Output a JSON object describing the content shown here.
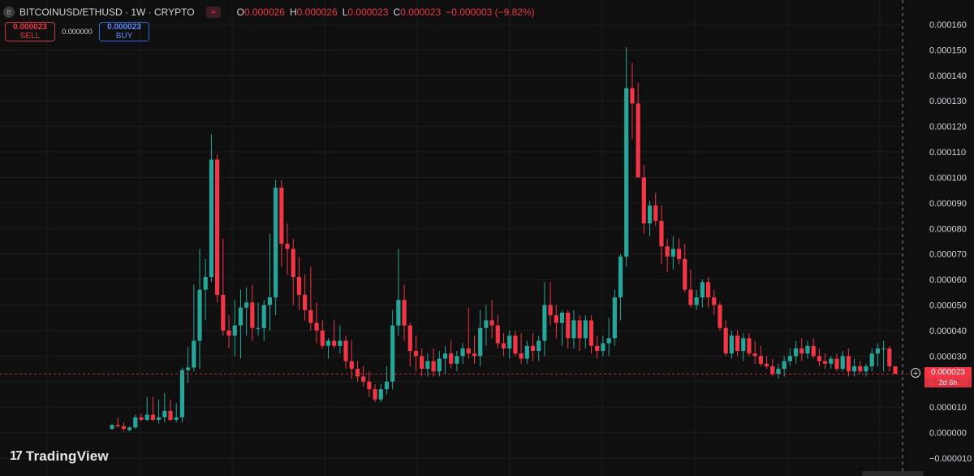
{
  "header": {
    "symbol_logo": "B",
    "symbol_title": "BITCOINUSD/ETHUSD · 1W · CRYPTO",
    "indicator_icon": "wave-icon",
    "ohlc": {
      "o_label": "O",
      "o_value": "0.000026",
      "h_label": "H",
      "h_value": "0.000026",
      "l_label": "L",
      "l_value": "0.000023",
      "c_label": "C",
      "c_value": "0.000023",
      "change": "−0.000003 (−9.82%)"
    }
  },
  "trade": {
    "sell_price": "0.000023",
    "sell_label": "SELL",
    "spread": "0.000000",
    "buy_price": "0.000023",
    "buy_label": "BUY"
  },
  "branding": {
    "logo": "17",
    "name": "TradingView"
  },
  "price_scale": {
    "current_price": "0.000023",
    "countdown": "2d 6h"
  },
  "colors": {
    "background": "#0f0f0f",
    "up": "#26a69a",
    "down": "#f23645",
    "grid": "#1e1e1e",
    "axis_text": "#d1d4dc"
  },
  "chart_data": {
    "type": "candlestick",
    "title": "BITCOINUSD/ETHUSD · 1W · CRYPTO",
    "ylim": [
      -1e-05,
      0.00016
    ],
    "yticks": [
      "0.000160",
      "0.000150",
      "0.000140",
      "0.000130",
      "0.000120",
      "0.000110",
      "0.000100",
      "0.000090",
      "0.000080",
      "0.000070",
      "0.000060",
      "0.000050",
      "0.000040",
      "0.000030",
      "0.000020",
      "0.000010",
      "0.000000",
      "−0.000010"
    ],
    "ytick_values": [
      0.00016,
      0.00015,
      0.00014,
      0.00013,
      0.00012,
      0.00011,
      0.0001,
      9e-05,
      8e-05,
      7e-05,
      6e-05,
      5e-05,
      4e-05,
      3e-05,
      2e-05,
      1e-05,
      0,
      -1e-05
    ],
    "grid": true,
    "last_price": 2.3e-05,
    "crosshair": "vertical dashed line at the last bar",
    "candles_ohlc": [
      [
        1.5e-06,
        3.5e-06,
        1e-06,
        3e-06
      ],
      [
        3e-06,
        6e-06,
        2e-06,
        2.5e-06
      ],
      [
        2.5e-06,
        4e-06,
        5e-07,
        1.5e-06
      ],
      [
        1e-06,
        2.5e-06,
        5e-07,
        2e-06
      ],
      [
        2e-06,
        7e-06,
        1.5e-06,
        6e-06
      ],
      [
        6e-06,
        7.5e-06,
        4.5e-06,
        5e-06
      ],
      [
        5e-06,
        1.4e-05,
        4.5e-06,
        7e-06
      ],
      [
        7e-06,
        1.4e-05,
        4.5e-06,
        5e-06
      ],
      [
        5e-06,
        1.3e-05,
        3.5e-06,
        6e-06
      ],
      [
        6e-06,
        1.55e-05,
        4e-06,
        8.5e-06
      ],
      [
        8.5e-06,
        1.3e-05,
        4.5e-06,
        5e-06
      ],
      [
        5e-06,
        1.15e-05,
        4e-06,
        6e-06
      ],
      [
        6e-06,
        2.55e-05,
        4e-06,
        2.45e-05
      ],
      [
        2.45e-05,
        3.35e-05,
        1.95e-05,
        2.55e-05
      ],
      [
        2.55e-05,
        5.8e-05,
        2.4e-05,
        3.6e-05
      ],
      [
        3.6e-05,
        7.2e-05,
        2.5e-05,
        5.6e-05
      ],
      [
        5.6e-05,
        6.8e-05,
        4.4e-05,
        6.1e-05
      ],
      [
        6.1e-05,
        0.000117,
        5.9e-05,
        0.000107
      ],
      [
        0.000107,
        0.000109,
        5.1e-05,
        5.4e-05
      ],
      [
        5.4e-05,
        7.6e-05,
        3.8e-05,
        4e-05
      ],
      [
        4e-05,
        4.6e-05,
        3.3e-05,
        3.8e-05
      ],
      [
        3.8e-05,
        5.2e-05,
        3e-05,
        4.2e-05
      ],
      [
        4.2e-05,
        5.6e-05,
        2.9e-05,
        4.9e-05
      ],
      [
        4.9e-05,
        5.7e-05,
        3.8e-05,
        5.1e-05
      ],
      [
        5.1e-05,
        5.8e-05,
        3.6e-05,
        4.1e-05
      ],
      [
        4.1e-05,
        5.1e-05,
        3.8e-05,
        4.1e-05
      ],
      [
        4.1e-05,
        5.2e-05,
        3.6e-05,
        5e-05
      ],
      [
        5e-05,
        7.8e-05,
        4e-05,
        5.3e-05
      ],
      [
        5.3e-05,
        9.9e-05,
        4.6e-05,
        9.6e-05
      ],
      [
        9.6e-05,
        9.9e-05,
        6.5e-05,
        7.4e-05
      ],
      [
        7.4e-05,
        8.2e-05,
        6.2e-05,
        7.2e-05
      ],
      [
        7.2e-05,
        7.6e-05,
        5e-05,
        6.1e-05
      ],
      [
        6.1e-05,
        6.9e-05,
        4.8e-05,
        5.4e-05
      ],
      [
        5.4e-05,
        6.2e-05,
        4.4e-05,
        4.8e-05
      ],
      [
        4.8e-05,
        6.5e-05,
        4e-05,
        4.3e-05
      ],
      [
        4.3e-05,
        5.1e-05,
        3.5e-05,
        4e-05
      ],
      [
        4e-05,
        4.4e-05,
        3.3e-05,
        3.4e-05
      ],
      [
        3.4e-05,
        3.7e-05,
        2.9e-05,
        3.6e-05
      ],
      [
        3.6e-05,
        4.4e-05,
        3.3e-05,
        3.4e-05
      ],
      [
        3.4e-05,
        4.2e-05,
        3.1e-05,
        3.6e-05
      ],
      [
        3.6e-05,
        3.8e-05,
        2.5e-05,
        2.8e-05
      ],
      [
        2.8e-05,
        3.6e-05,
        2.1e-05,
        2.5e-05
      ],
      [
        2.5e-05,
        2.8e-05,
        2e-05,
        2.2e-05
      ],
      [
        2.2e-05,
        2.6e-05,
        1.8e-05,
        2e-05
      ],
      [
        2e-05,
        2.4e-05,
        1.4e-05,
        1.7e-05
      ],
      [
        1.7e-05,
        1.9e-05,
        1.2e-05,
        1.3e-05
      ],
      [
        1.3e-05,
        1.9e-05,
        1.2e-05,
        1.7e-05
      ],
      [
        1.7e-05,
        2.6e-05,
        1.5e-05,
        2e-05
      ],
      [
        2e-05,
        4.8e-05,
        1.7e-05,
        4.2e-05
      ],
      [
        4.2e-05,
        7.2e-05,
        3.8e-05,
        5.2e-05
      ],
      [
        5.2e-05,
        5.8e-05,
        3.6e-05,
        4.2e-05
      ],
      [
        4.2e-05,
        4.3e-05,
        2.6e-05,
        3.2e-05
      ],
      [
        3.2e-05,
        3.8e-05,
        2.4e-05,
        3e-05
      ],
      [
        3e-05,
        3.3e-05,
        2.2e-05,
        2.5e-05
      ],
      [
        2.5e-05,
        3.1e-05,
        2.2e-05,
        2.8e-05
      ],
      [
        2.8e-05,
        3.3e-05,
        2.2e-05,
        2.4e-05
      ],
      [
        2.4e-05,
        3.2e-05,
        2.2e-05,
        2.9e-05
      ],
      [
        2.9e-05,
        3.4e-05,
        2.3e-05,
        3.1e-05
      ],
      [
        3.1e-05,
        3.6e-05,
        2.5e-05,
        2.7e-05
      ],
      [
        2.7e-05,
        3.2e-05,
        2.4e-05,
        3e-05
      ],
      [
        3e-05,
        3.5e-05,
        2.7e-05,
        3.3e-05
      ],
      [
        3.3e-05,
        4.9e-05,
        2.9e-05,
        3.1e-05
      ],
      [
        3.1e-05,
        3.8e-05,
        2.7e-05,
        3e-05
      ],
      [
        3e-05,
        4.8e-05,
        2.6e-05,
        4.1e-05
      ],
      [
        4.1e-05,
        5e-05,
        3.4e-05,
        4.4e-05
      ],
      [
        4.4e-05,
        5.2e-05,
        3.7e-05,
        4.2e-05
      ],
      [
        4.2e-05,
        4.6e-05,
        3.3e-05,
        3.5e-05
      ],
      [
        3.5e-05,
        3.9e-05,
        3e-05,
        3.3e-05
      ],
      [
        3.3e-05,
        4e-05,
        2.9e-05,
        3.8e-05
      ],
      [
        3.8e-05,
        4e-05,
        3e-05,
        3.1e-05
      ],
      [
        3.1e-05,
        3.9e-05,
        2.7e-05,
        2.9e-05
      ],
      [
        2.9e-05,
        3.6e-05,
        2.7e-05,
        3.4e-05
      ],
      [
        3.4e-05,
        3.9e-05,
        2.8e-05,
        3.2e-05
      ],
      [
        3.2e-05,
        3.8e-05,
        2.8e-05,
        3.6e-05
      ],
      [
        3.6e-05,
        5.9e-05,
        3e-05,
        5e-05
      ],
      [
        5e-05,
        5.9e-05,
        4.2e-05,
        4.6e-05
      ],
      [
        4.6e-05,
        5e-05,
        3.7e-05,
        4.3e-05
      ],
      [
        4.3e-05,
        4.8e-05,
        3.4e-05,
        4.7e-05
      ],
      [
        4.7e-05,
        4.8e-05,
        3.3e-05,
        3.7e-05
      ],
      [
        3.7e-05,
        4.8e-05,
        3.3e-05,
        4.4e-05
      ],
      [
        4.4e-05,
        4.6e-05,
        3.2e-05,
        3.7e-05
      ],
      [
        3.7e-05,
        4.6e-05,
        3.3e-05,
        4.4e-05
      ],
      [
        4.4e-05,
        4.6e-05,
        3.1e-05,
        3.4e-05
      ],
      [
        3.4e-05,
        3.8e-05,
        2.9e-05,
        3.2e-05
      ],
      [
        3.2e-05,
        3.8e-05,
        3e-05,
        3.5e-05
      ],
      [
        3.5e-05,
        4.5e-05,
        3e-05,
        3.7e-05
      ],
      [
        3.7e-05,
        5.6e-05,
        3.4e-05,
        5.3e-05
      ],
      [
        5.3e-05,
        7e-05,
        4.4e-05,
        6.9e-05
      ],
      [
        6.9e-05,
        0.000151,
        6.5e-05,
        0.000135
      ],
      [
        0.000135,
        0.000145,
        0.000115,
        0.000129
      ],
      [
        0.000129,
        0.000137,
        0.0001,
        0.0001
      ],
      [
        0.0001,
        0.000105,
        7.8e-05,
        8.2e-05
      ],
      [
        8.2e-05,
        9.1e-05,
        7.7e-05,
        8.9e-05
      ],
      [
        8.9e-05,
        9.4e-05,
        8.1e-05,
        8.3e-05
      ],
      [
        8.3e-05,
        8.9e-05,
        6.6e-05,
        7.3e-05
      ],
      [
        7.3e-05,
        7.6e-05,
        6.3e-05,
        6.9e-05
      ],
      [
        6.9e-05,
        7.7e-05,
        6.4e-05,
        7.2e-05
      ],
      [
        7.2e-05,
        7.6e-05,
        6.6e-05,
        6.8e-05
      ],
      [
        6.8e-05,
        7.4e-05,
        5.5e-05,
        5.6e-05
      ],
      [
        5.6e-05,
        6.4e-05,
        4.9e-05,
        5e-05
      ],
      [
        5e-05,
        5.6e-05,
        4.8e-05,
        5.3e-05
      ],
      [
        5.3e-05,
        6e-05,
        4.9e-05,
        5.9e-05
      ],
      [
        5.9e-05,
        6.1e-05,
        4.9e-05,
        5.3e-05
      ],
      [
        5.3e-05,
        5.6e-05,
        4.6e-05,
        5e-05
      ],
      [
        5e-05,
        5.1e-05,
        4e-05,
        4.1e-05
      ],
      [
        4.1e-05,
        4.4e-05,
        3e-05,
        3.1e-05
      ],
      [
        3.1e-05,
        4e-05,
        2.9e-05,
        3.8e-05
      ],
      [
        3.8e-05,
        4e-05,
        3e-05,
        3.2e-05
      ],
      [
        3.2e-05,
        3.9e-05,
        2.8e-05,
        3.7e-05
      ],
      [
        3.7e-05,
        3.9e-05,
        3e-05,
        3.1e-05
      ],
      [
        3.1e-05,
        3.6e-05,
        2.7e-05,
        3e-05
      ],
      [
        3e-05,
        3.4e-05,
        2.6e-05,
        2.7e-05
      ],
      [
        2.7e-05,
        3e-05,
        2.5e-05,
        2.6e-05
      ],
      [
        2.6e-05,
        2.9e-05,
        2.2e-05,
        2.3e-05
      ],
      [
        2.3e-05,
        2.7e-05,
        2.1e-05,
        2.5e-05
      ],
      [
        2.5e-05,
        3e-05,
        2.2e-05,
        2.8e-05
      ],
      [
        2.8e-05,
        3.3e-05,
        2.6e-05,
        3e-05
      ],
      [
        3e-05,
        3.6e-05,
        2.7e-05,
        3.3e-05
      ],
      [
        3.3e-05,
        3.7e-05,
        2.8e-05,
        3.1e-05
      ],
      [
        3.1e-05,
        3.6e-05,
        2.9e-05,
        3.4e-05
      ],
      [
        3.4e-05,
        3.7e-05,
        2.9e-05,
        3e-05
      ],
      [
        3e-05,
        3.3e-05,
        2.6e-05,
        2.8e-05
      ],
      [
        2.8e-05,
        3.1e-05,
        2.5e-05,
        2.7e-05
      ],
      [
        2.7e-05,
        3e-05,
        2.5e-05,
        2.9e-05
      ],
      [
        2.9e-05,
        3.1e-05,
        2.4e-05,
        2.5e-05
      ],
      [
        2.5e-05,
        3.2e-05,
        2.4e-05,
        3e-05
      ],
      [
        3e-05,
        3.3e-05,
        2.2e-05,
        2.4e-05
      ],
      [
        2.4e-05,
        2.9e-05,
        2.2e-05,
        2.6e-05
      ],
      [
        2.6e-05,
        2.8e-05,
        2.3e-05,
        2.4e-05
      ],
      [
        2.4e-05,
        2.7e-05,
        2.2e-05,
        2.6e-05
      ],
      [
        2.6e-05,
        3.3e-05,
        2.4e-05,
        3.1e-05
      ],
      [
        3.1e-05,
        3.5e-05,
        2.6e-05,
        3.3e-05
      ],
      [
        3.3e-05,
        3.6e-05,
        2.4e-05,
        3.3e-05
      ],
      [
        3.3e-05,
        3.4e-05,
        2.4e-05,
        2.6e-05
      ],
      [
        2.6e-05,
        2.6e-05,
        2.3e-05,
        2.3e-05
      ]
    ]
  }
}
